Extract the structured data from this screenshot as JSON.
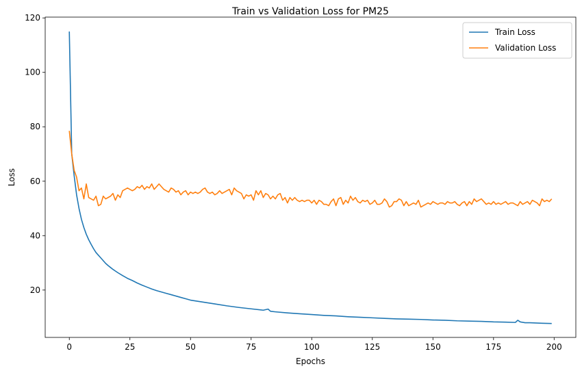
{
  "chart_data": {
    "type": "line",
    "title": "Train vs Validation Loss for PM25",
    "xlabel": "Epochs",
    "ylabel": "Loss",
    "xlim": [
      -9.95,
      208.95
    ],
    "ylim": [
      2.6,
      120.3
    ],
    "xticks": [
      0,
      25,
      50,
      75,
      100,
      125,
      150,
      175,
      200
    ],
    "yticks": [
      20,
      40,
      60,
      80,
      100,
      120
    ],
    "grid": false,
    "legend_position": "top-right",
    "series": [
      {
        "name": "Train Loss",
        "color": "#1f77b4",
        "points": [
          [
            0,
            115
          ],
          [
            1,
            70
          ],
          [
            2,
            62
          ],
          [
            3,
            55
          ],
          [
            4,
            50
          ],
          [
            5,
            46
          ],
          [
            6,
            43
          ],
          [
            7,
            40.5
          ],
          [
            8,
            38.5
          ],
          [
            9,
            36.8
          ],
          [
            10,
            35.2
          ],
          [
            11,
            33.8
          ],
          [
            12,
            32.8
          ],
          [
            13,
            31.8
          ],
          [
            14,
            30.8
          ],
          [
            15,
            29.8
          ],
          [
            16,
            29
          ],
          [
            17,
            28.3
          ],
          [
            18,
            27.6
          ],
          [
            19,
            27
          ],
          [
            20,
            26.4
          ],
          [
            22,
            25.3
          ],
          [
            24,
            24.3
          ],
          [
            26,
            23.5
          ],
          [
            28,
            22.6
          ],
          [
            30,
            21.8
          ],
          [
            32,
            21.1
          ],
          [
            34,
            20.4
          ],
          [
            36,
            19.8
          ],
          [
            38,
            19.3
          ],
          [
            40,
            18.8
          ],
          [
            42,
            18.3
          ],
          [
            44,
            17.8
          ],
          [
            46,
            17.3
          ],
          [
            48,
            16.8
          ],
          [
            50,
            16.3
          ],
          [
            55,
            15.6
          ],
          [
            60,
            14.9
          ],
          [
            65,
            14.2
          ],
          [
            70,
            13.6
          ],
          [
            75,
            13.1
          ],
          [
            80,
            12.6
          ],
          [
            82,
            13
          ],
          [
            83,
            12.2
          ],
          [
            85,
            12
          ],
          [
            90,
            11.6
          ],
          [
            95,
            11.3
          ],
          [
            100,
            11
          ],
          [
            105,
            10.7
          ],
          [
            110,
            10.5
          ],
          [
            115,
            10.2
          ],
          [
            120,
            10
          ],
          [
            125,
            9.8
          ],
          [
            130,
            9.6
          ],
          [
            135,
            9.4
          ],
          [
            140,
            9.3
          ],
          [
            145,
            9.2
          ],
          [
            150,
            9
          ],
          [
            155,
            8.9
          ],
          [
            160,
            8.7
          ],
          [
            165,
            8.6
          ],
          [
            170,
            8.5
          ],
          [
            175,
            8.3
          ],
          [
            180,
            8.2
          ],
          [
            184,
            8.1
          ],
          [
            185,
            8.9
          ],
          [
            186,
            8.3
          ],
          [
            188,
            8
          ],
          [
            190,
            8
          ],
          [
            195,
            7.8
          ],
          [
            199,
            7.7
          ]
        ]
      },
      {
        "name": "Validation Loss",
        "color": "#ff7f0e",
        "points": [
          [
            0,
            78.5
          ],
          [
            1,
            70
          ],
          [
            2,
            64
          ],
          [
            3,
            61.5
          ],
          [
            4,
            56.5
          ],
          [
            5,
            57.5
          ],
          [
            6,
            53.5
          ],
          [
            7,
            59
          ],
          [
            8,
            54
          ],
          [
            9,
            53.5
          ],
          [
            10,
            53
          ],
          [
            11,
            54.5
          ],
          [
            12,
            51
          ],
          [
            13,
            51.5
          ],
          [
            14,
            54.5
          ],
          [
            15,
            53.5
          ],
          [
            16,
            54
          ],
          [
            17,
            54.5
          ],
          [
            18,
            55.5
          ],
          [
            19,
            53
          ],
          [
            20,
            55
          ],
          [
            21,
            54
          ],
          [
            22,
            56.5
          ],
          [
            23,
            57
          ],
          [
            24,
            57.5
          ],
          [
            25,
            57
          ],
          [
            26,
            56.5
          ],
          [
            27,
            57
          ],
          [
            28,
            58
          ],
          [
            29,
            57.5
          ],
          [
            30,
            58.5
          ],
          [
            31,
            57
          ],
          [
            32,
            58
          ],
          [
            33,
            57.5
          ],
          [
            34,
            59
          ],
          [
            35,
            57
          ],
          [
            36,
            58
          ],
          [
            37,
            59
          ],
          [
            38,
            58
          ],
          [
            39,
            57
          ],
          [
            40,
            56.5
          ],
          [
            41,
            56
          ],
          [
            42,
            57.5
          ],
          [
            43,
            57
          ],
          [
            44,
            56
          ],
          [
            45,
            56.5
          ],
          [
            46,
            55
          ],
          [
            47,
            56
          ],
          [
            48,
            56.5
          ],
          [
            49,
            55
          ],
          [
            50,
            56
          ],
          [
            51,
            55.5
          ],
          [
            52,
            56
          ],
          [
            53,
            55.5
          ],
          [
            54,
            56
          ],
          [
            55,
            57
          ],
          [
            56,
            57.5
          ],
          [
            57,
            56
          ],
          [
            58,
            55.5
          ],
          [
            59,
            56
          ],
          [
            60,
            55
          ],
          [
            61,
            55.5
          ],
          [
            62,
            56.5
          ],
          [
            63,
            55.5
          ],
          [
            64,
            56
          ],
          [
            65,
            56.5
          ],
          [
            66,
            57
          ],
          [
            67,
            55
          ],
          [
            68,
            57.5
          ],
          [
            69,
            56.5
          ],
          [
            70,
            56
          ],
          [
            71,
            55.5
          ],
          [
            72,
            53.5
          ],
          [
            73,
            55
          ],
          [
            74,
            54.5
          ],
          [
            75,
            55
          ],
          [
            76,
            53
          ],
          [
            77,
            56.5
          ],
          [
            78,
            55
          ],
          [
            79,
            56.5
          ],
          [
            80,
            54
          ],
          [
            81,
            55.5
          ],
          [
            82,
            55
          ],
          [
            83,
            53.5
          ],
          [
            84,
            54.5
          ],
          [
            85,
            53.5
          ],
          [
            86,
            55
          ],
          [
            87,
            55.5
          ],
          [
            88,
            53
          ],
          [
            89,
            54
          ],
          [
            90,
            52
          ],
          [
            91,
            54
          ],
          [
            92,
            53
          ],
          [
            93,
            54
          ],
          [
            94,
            53
          ],
          [
            95,
            52.5
          ],
          [
            96,
            53
          ],
          [
            97,
            52.5
          ],
          [
            98,
            53
          ],
          [
            99,
            53
          ],
          [
            100,
            52
          ],
          [
            101,
            53
          ],
          [
            102,
            51.5
          ],
          [
            103,
            53
          ],
          [
            104,
            52.5
          ],
          [
            105,
            51.5
          ],
          [
            106,
            51.5
          ],
          [
            107,
            51
          ],
          [
            108,
            52.5
          ],
          [
            109,
            53.5
          ],
          [
            110,
            51
          ],
          [
            111,
            53.5
          ],
          [
            112,
            54
          ],
          [
            113,
            51.5
          ],
          [
            114,
            53
          ],
          [
            115,
            52
          ],
          [
            116,
            54.5
          ],
          [
            117,
            53
          ],
          [
            118,
            54
          ],
          [
            119,
            52.5
          ],
          [
            120,
            52
          ],
          [
            121,
            53
          ],
          [
            122,
            52.5
          ],
          [
            123,
            53
          ],
          [
            124,
            51.5
          ],
          [
            125,
            52
          ],
          [
            126,
            53
          ],
          [
            127,
            51.5
          ],
          [
            128,
            51.5
          ],
          [
            129,
            52
          ],
          [
            130,
            53.5
          ],
          [
            131,
            52.5
          ],
          [
            132,
            50.5
          ],
          [
            133,
            51
          ],
          [
            134,
            52.5
          ],
          [
            135,
            52.5
          ],
          [
            136,
            53.5
          ],
          [
            137,
            53
          ],
          [
            138,
            51
          ],
          [
            139,
            52.5
          ],
          [
            140,
            51
          ],
          [
            141,
            51.5
          ],
          [
            142,
            52
          ],
          [
            143,
            51.5
          ],
          [
            144,
            53
          ],
          [
            145,
            50.5
          ],
          [
            146,
            51
          ],
          [
            147,
            51.5
          ],
          [
            148,
            52
          ],
          [
            149,
            51.5
          ],
          [
            150,
            52.5
          ],
          [
            151,
            52
          ],
          [
            152,
            51.5
          ],
          [
            153,
            52
          ],
          [
            154,
            52
          ],
          [
            155,
            51.5
          ],
          [
            156,
            52.5
          ],
          [
            157,
            52
          ],
          [
            158,
            52
          ],
          [
            159,
            52.5
          ],
          [
            160,
            51.5
          ],
          [
            161,
            51
          ],
          [
            162,
            52
          ],
          [
            163,
            52.5
          ],
          [
            164,
            51
          ],
          [
            165,
            52.5
          ],
          [
            166,
            51.5
          ],
          [
            167,
            53.5
          ],
          [
            168,
            52.5
          ],
          [
            169,
            53
          ],
          [
            170,
            53.5
          ],
          [
            171,
            52.5
          ],
          [
            172,
            51.5
          ],
          [
            173,
            52
          ],
          [
            174,
            51.5
          ],
          [
            175,
            52.5
          ],
          [
            176,
            51.5
          ],
          [
            177,
            52
          ],
          [
            178,
            51.5
          ],
          [
            179,
            52
          ],
          [
            180,
            52.5
          ],
          [
            181,
            51.5
          ],
          [
            182,
            52
          ],
          [
            183,
            52
          ],
          [
            184,
            51.5
          ],
          [
            185,
            51
          ],
          [
            186,
            52.5
          ],
          [
            187,
            51.5
          ],
          [
            188,
            52
          ],
          [
            189,
            52.5
          ],
          [
            190,
            51.5
          ],
          [
            191,
            53
          ],
          [
            192,
            52.5
          ],
          [
            193,
            52
          ],
          [
            194,
            51
          ],
          [
            195,
            53.5
          ],
          [
            196,
            52.5
          ],
          [
            197,
            53
          ],
          [
            198,
            52.5
          ],
          [
            199,
            53.5
          ]
        ]
      }
    ]
  }
}
